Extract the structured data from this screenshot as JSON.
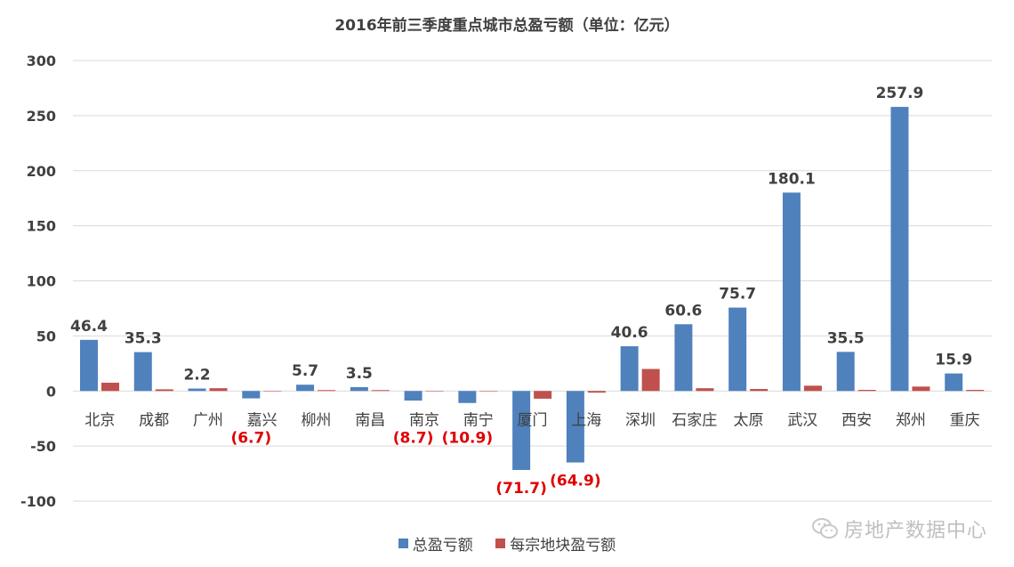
{
  "colors": {
    "total": "#4f81bd",
    "land": "#c0504d",
    "negative_label": "#e00000",
    "positive_label": "#404040",
    "grid": "#d9d9d9",
    "axis_text": "#404040"
  },
  "watermark": {
    "text": "房地产数据中心",
    "icon": "wechat-icon"
  },
  "chart_data": {
    "type": "bar",
    "title": "2016年前三季度重点城市总盈亏额（单位：亿元）",
    "xlabel": "",
    "ylabel": "",
    "ylim": [
      -100,
      300
    ],
    "yticks": [
      -100,
      -50,
      0,
      50,
      100,
      150,
      200,
      250,
      300
    ],
    "ytick_labels": [
      "-100",
      "-50",
      "0",
      "50",
      "100",
      "150",
      "200",
      "250",
      "300"
    ],
    "grid": true,
    "legend_position": "bottom",
    "categories": [
      "北京",
      "成都",
      "广州",
      "嘉兴",
      "柳州",
      "南昌",
      "南京",
      "南宁",
      "厦门",
      "上海",
      "深圳",
      "石家庄",
      "太原",
      "武汉",
      "西安",
      "郑州",
      "重庆"
    ],
    "series": [
      {
        "name": "总盈亏额",
        "values": [
          46.4,
          35.3,
          2.2,
          -6.7,
          5.7,
          3.5,
          -8.7,
          -10.9,
          -71.7,
          -64.9,
          40.6,
          60.6,
          75.7,
          180.1,
          35.5,
          257.9,
          15.9
        ],
        "data_labels": [
          "46.4",
          "35.3",
          "2.2",
          "(6.7)",
          "5.7",
          "3.5",
          "(8.7)",
          "(10.9)",
          "(71.7)",
          "(64.9)",
          "40.6",
          "60.6",
          "75.7",
          "180.1",
          "35.5",
          "257.9",
          "15.9"
        ]
      },
      {
        "name": "每宗地块盈亏额",
        "values": [
          7.5,
          1.5,
          2.5,
          0,
          0.8,
          0.8,
          0,
          0,
          -7.0,
          -1.5,
          20.0,
          2.5,
          1.8,
          4.8,
          1.0,
          4.0,
          1.0
        ]
      }
    ]
  }
}
